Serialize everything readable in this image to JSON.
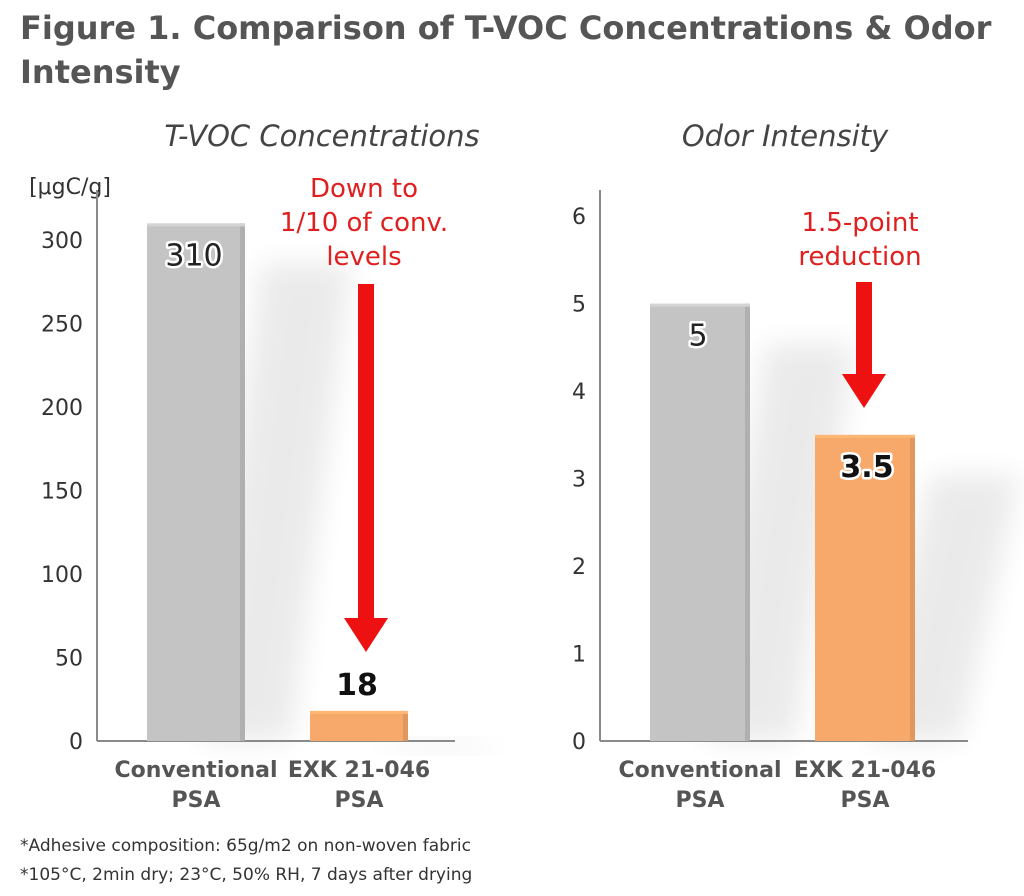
{
  "figure_title": "Figure 1. Comparison of T-VOC Concentrations & Odor Intensity",
  "footnotes": [
    "*Adhesive composition: 65g/m2 on non-woven fabric",
    "*105°C, 2min dry; 23°C, 50% RH, 7 days after drying"
  ],
  "colors": {
    "conventional": "#c4c4c4",
    "exk": "#f7a96b",
    "arrow": "#ee1111",
    "annotation": "#e02020",
    "axis": "#8a8a8a"
  },
  "chart_data": [
    {
      "type": "bar",
      "title": "T-VOC Concentrations",
      "ylabel": "[μgC/g]",
      "categories": [
        "Conventional\nPSA",
        "EXK 21-046\nPSA"
      ],
      "values": [
        310,
        18
      ],
      "data_labels": [
        "310",
        "18"
      ],
      "ylim": [
        0,
        330
      ],
      "yticks": [
        0,
        50,
        100,
        150,
        200,
        250,
        300
      ],
      "annotation": "Down to\n1/10 of conv.\nlevels",
      "grid": false
    },
    {
      "type": "bar",
      "title": "Odor Intensity",
      "ylabel": "",
      "categories": [
        "Conventional\nPSA",
        "EXK 21-046\nPSA"
      ],
      "values": [
        5,
        3.5
      ],
      "data_labels": [
        "5",
        "3.5"
      ],
      "ylim": [
        0,
        6.3
      ],
      "yticks": [
        0,
        1,
        2,
        3,
        4,
        5,
        6
      ],
      "annotation": "1.5-point\nreduction",
      "grid": false
    }
  ]
}
